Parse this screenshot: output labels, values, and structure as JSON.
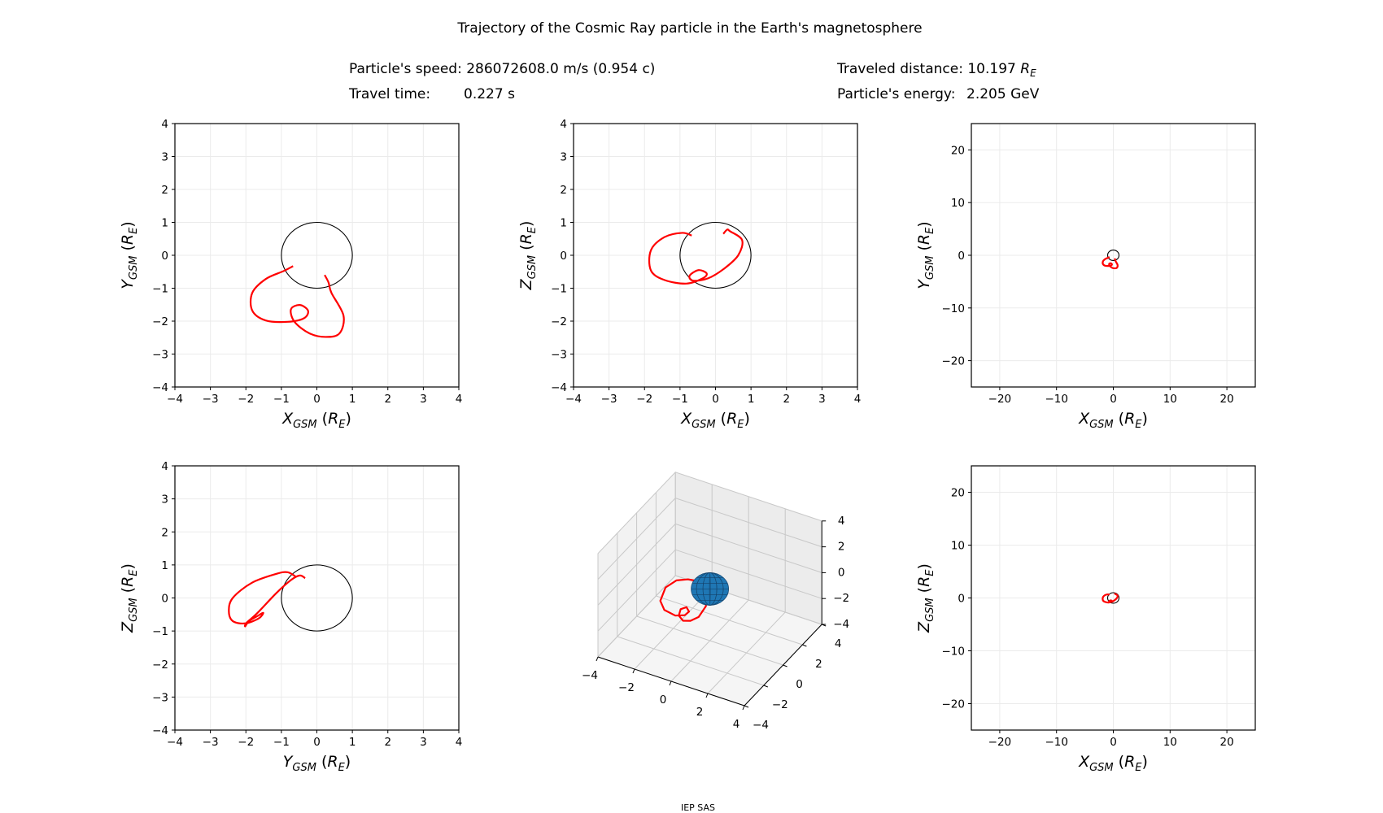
{
  "header": {
    "title": "Trajectory of the Cosmic Ray particle in the Earth's magnetosphere",
    "speed": "Particle's speed: 286072608.0 m/s (0.954 c)",
    "travel_time_label": "Travel time:",
    "travel_time_value": "0.227 s",
    "distance_prefix": "Traveled distance: 10.197 ",
    "distance_unit": "R",
    "distance_unit_sub": "E",
    "energy_label": "Particle's energy:",
    "energy_value": "2.205 GeV"
  },
  "footer": "IEP SAS",
  "colors": {
    "trajectory": "#ff0000",
    "earth_outline": "#000000",
    "earth_fill": "#1f77b4",
    "grid": "#ebebeb"
  },
  "chart_data": [
    {
      "type": "line",
      "name": "xy-near",
      "xaxis": "x",
      "yaxis": "y",
      "xlabel": {
        "v": "X",
        "s": "GSM",
        "u": "R",
        "us": "E"
      },
      "ylabel": {
        "v": "Y",
        "s": "GSM",
        "u": "R",
        "us": "E"
      },
      "xlim": [
        -4,
        4
      ],
      "ylim": [
        -4,
        4
      ],
      "xticks": [
        -4,
        -3,
        -2,
        -1,
        0,
        1,
        2,
        3,
        4
      ],
      "yticks": [
        -4,
        -3,
        -2,
        -1,
        0,
        1,
        2,
        3,
        4
      ],
      "grid": true,
      "earth_radius": 1
    },
    {
      "type": "line",
      "name": "xz-near",
      "xaxis": "x",
      "yaxis": "z",
      "xlabel": {
        "v": "X",
        "s": "GSM",
        "u": "R",
        "us": "E"
      },
      "ylabel": {
        "v": "Z",
        "s": "GSM",
        "u": "R",
        "us": "E"
      },
      "xlim": [
        -4,
        4
      ],
      "ylim": [
        -4,
        4
      ],
      "xticks": [
        -4,
        -3,
        -2,
        -1,
        0,
        1,
        2,
        3,
        4
      ],
      "yticks": [
        -4,
        -3,
        -2,
        -1,
        0,
        1,
        2,
        3,
        4
      ],
      "grid": true,
      "earth_radius": 1
    },
    {
      "type": "line",
      "name": "xy-far",
      "xaxis": "x",
      "yaxis": "y",
      "xlabel": {
        "v": "X",
        "s": "GSM",
        "u": "R",
        "us": "E"
      },
      "ylabel": {
        "v": "Y",
        "s": "GSM",
        "u": "R",
        "us": "E"
      },
      "xlim": [
        -25,
        25
      ],
      "ylim": [
        -25,
        25
      ],
      "xticks": [
        -20,
        -10,
        0,
        10,
        20
      ],
      "yticks": [
        -20,
        -10,
        0,
        10,
        20
      ],
      "grid": true,
      "earth_radius": 1
    },
    {
      "type": "line",
      "name": "yz-near",
      "xaxis": "y",
      "yaxis": "z",
      "xlabel": {
        "v": "Y",
        "s": "GSM",
        "u": "R",
        "us": "E"
      },
      "ylabel": {
        "v": "Z",
        "s": "GSM",
        "u": "R",
        "us": "E"
      },
      "xlim": [
        -4,
        4
      ],
      "ylim": [
        -4,
        4
      ],
      "xticks": [
        -4,
        -3,
        -2,
        -1,
        0,
        1,
        2,
        3,
        4
      ],
      "yticks": [
        -4,
        -3,
        -2,
        -1,
        0,
        1,
        2,
        3,
        4
      ],
      "grid": true,
      "earth_radius": 1
    },
    {
      "type": "line3d",
      "name": "xyz-3d",
      "xlim": [
        -4,
        4
      ],
      "ylim": [
        -4,
        4
      ],
      "zlim": [
        -4,
        4
      ],
      "xticks": [
        -4,
        -2,
        0,
        2,
        4
      ],
      "yticks": [
        -4,
        -2,
        0,
        2,
        4
      ],
      "zticks": [
        -4,
        -2,
        0,
        2,
        4
      ],
      "earth_radius": 1
    },
    {
      "type": "line",
      "name": "xz-far",
      "xaxis": "x",
      "yaxis": "z",
      "xlabel": {
        "v": "X",
        "s": "GSM",
        "u": "R",
        "us": "E"
      },
      "ylabel": {
        "v": "Z",
        "s": "GSM",
        "u": "R",
        "us": "E"
      },
      "xlim": [
        -25,
        25
      ],
      "ylim": [
        -25,
        25
      ],
      "xticks": [
        -20,
        -10,
        0,
        10,
        20
      ],
      "yticks": [
        -20,
        -10,
        0,
        10,
        20
      ],
      "grid": true,
      "earth_radius": 1
    }
  ],
  "trajectory": {
    "units": "R_E",
    "points": [
      [
        -0.67,
        -0.33,
        0.6
      ],
      [
        -0.94,
        -0.48,
        0.68
      ],
      [
        -1.44,
        -0.72,
        0.55
      ],
      [
        -1.82,
        -1.14,
        0.15
      ],
      [
        -1.82,
        -1.68,
        -0.46
      ],
      [
        -1.44,
        -1.98,
        -0.75
      ],
      [
        -0.82,
        -2.02,
        -0.86
      ],
      [
        -0.36,
        -1.91,
        -0.7
      ],
      [
        -0.25,
        -1.68,
        -0.55
      ],
      [
        -0.48,
        -1.51,
        -0.45
      ],
      [
        -0.73,
        -1.64,
        -0.62
      ],
      [
        -0.63,
        -2.02,
        -0.77
      ],
      [
        -0.21,
        -2.37,
        -0.7
      ],
      [
        0.25,
        -2.48,
        -0.4
      ],
      [
        0.64,
        -2.37,
        0.0
      ],
      [
        0.75,
        -1.83,
        0.46
      ],
      [
        0.41,
        -1.14,
        0.73
      ],
      [
        0.33,
        -0.83,
        0.78
      ],
      [
        0.22,
        -0.6,
        0.65
      ]
    ]
  }
}
